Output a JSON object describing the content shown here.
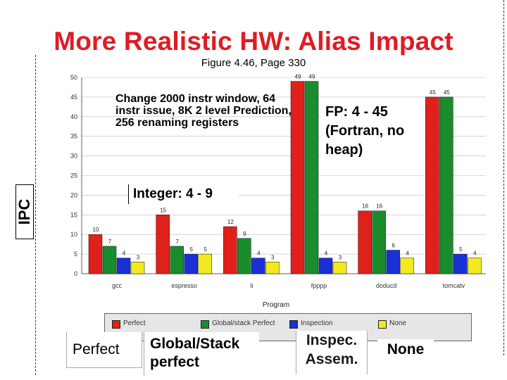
{
  "slide": {
    "title": "More Realistic HW: Alias Impact",
    "figure_ref": "Figure 4.46, Page 330",
    "y_axis_label": "IPC"
  },
  "annotations": {
    "change_text": "Change  2000 instr window, 64 instr issue, 8K 2 level Prediction, 256 renaming registers",
    "fp_text": "FP: 4 - 45 (Fortran, no heap)",
    "integer_text": "Integer: 4 - 9"
  },
  "legend": {
    "entries": [
      {
        "label": "Perfect",
        "color": "#e0201a"
      },
      {
        "label": "Global/stack Perfect",
        "color": "#1a8c2e"
      },
      {
        "label": "Inspection",
        "color": "#1a2fd6"
      },
      {
        "label": "None",
        "color": "#f2ea1c"
      }
    ]
  },
  "big_labels": {
    "perfect": "Perfect",
    "global": "Global/Stack perfect",
    "inspec": "Inspec. Assem.",
    "none": "None"
  },
  "chart_data": {
    "type": "bar",
    "xlabel": "Program",
    "ylabel": "IPC",
    "ylim": [
      0,
      50
    ],
    "yticks": [
      0,
      5,
      10,
      15,
      20,
      25,
      30,
      35,
      40,
      45,
      50
    ],
    "grid": true,
    "legend_position": "bottom",
    "categories": [
      "gcc",
      "espresso",
      "li",
      "fpppp",
      "doducd",
      "tomcatv"
    ],
    "series": [
      {
        "name": "Perfect",
        "color": "#e0201a",
        "values": [
          10,
          15,
          12,
          49,
          16,
          45
        ]
      },
      {
        "name": "Global/stack Perfect",
        "color": "#1a8c2e",
        "values": [
          7,
          7,
          9,
          49,
          16,
          45
        ]
      },
      {
        "name": "Inspection",
        "color": "#1a2fd6",
        "values": [
          4,
          5,
          4,
          4,
          6,
          5
        ]
      },
      {
        "name": "None",
        "color": "#f2ea1c",
        "values": [
          3,
          5,
          3,
          3,
          4,
          4
        ]
      }
    ]
  }
}
